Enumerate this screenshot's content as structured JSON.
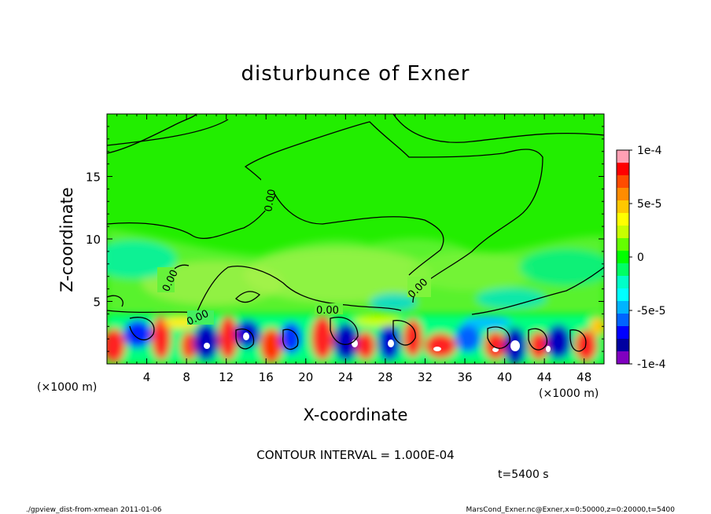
{
  "chart_data": {
    "type": "heatmap",
    "title": "disturbunce of Exner",
    "xlabel": "X-coordinate",
    "ylabel": "Z-coordinate",
    "x_unit": "(×1000 m)",
    "z_unit": "(×1000 m)",
    "xlim": [
      0,
      50
    ],
    "zlim": [
      0,
      20
    ],
    "x_ticks": [
      4,
      8,
      12,
      16,
      20,
      24,
      28,
      32,
      36,
      40,
      44,
      48
    ],
    "z_ticks": [
      5,
      10,
      15
    ],
    "colorbar": {
      "min": -0.0001,
      "max": 0.0001,
      "tick_labels": [
        "1e-4",
        "5e-5",
        "0",
        "-5e-5",
        "-1e-4"
      ],
      "tick_values": [
        0.0001,
        5e-05,
        0,
        -5e-05,
        -0.0001
      ],
      "colors": [
        "#ffa0b4",
        "#ff0000",
        "#ff4c00",
        "#ff8c00",
        "#ffc800",
        "#ffff00",
        "#c8ff00",
        "#64ff00",
        "#00ff00",
        "#00ff64",
        "#00ffc8",
        "#00ffff",
        "#00b4ff",
        "#0064ff",
        "#0000ff",
        "#0000a0",
        "#8000c0"
      ]
    },
    "contour_labels": [
      "0.00",
      "0.00",
      "0.00",
      "0.00",
      "0.00"
    ],
    "contour_interval": "CONTOUR INTERVAL = 1.000E-04",
    "time_label": "t=5400 s"
  },
  "footer": {
    "left": "./gpview_dist-from-xmean  2011-01-06",
    "right": "MarsCond_Exner.nc@Exner,x=0:50000,z=0:20000,t=5400"
  }
}
